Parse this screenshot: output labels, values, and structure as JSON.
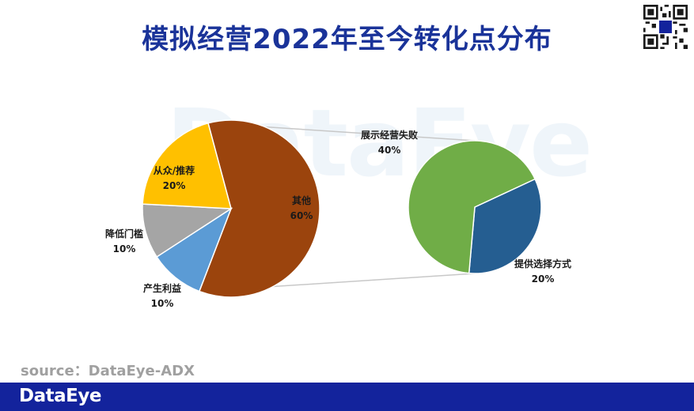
{
  "title": "模拟经营2022年至今转化点分布",
  "watermark": "DataEye",
  "source": "source：DataEye-ADX",
  "footer": {
    "brand": "DataEye"
  },
  "colors": {
    "title": "#1a3399",
    "footer_bg": "#13239c",
    "source": "#a0a0a0",
    "watermark": "#eef4fa",
    "connector": "#c8c8c8"
  },
  "chart_data": [
    {
      "type": "pie",
      "slices": [
        {
          "label": "其他",
          "value": 60,
          "value_label": "60%",
          "color": "#9b440d"
        },
        {
          "label": "产生利益",
          "value": 10,
          "value_label": "10%",
          "color": "#5b9bd5"
        },
        {
          "label": "降低门槛",
          "value": 10,
          "value_label": "10%",
          "color": "#a5a5a5"
        },
        {
          "label": "从众/推荐",
          "value": 20,
          "value_label": "20%",
          "color": "#ffc000"
        }
      ],
      "expanded_slice": "其他"
    },
    {
      "type": "pie",
      "slices": [
        {
          "label": "提供选择方式",
          "value": 20,
          "value_label": "20%",
          "color": "#255e91"
        },
        {
          "label": "展示经营失败",
          "value": 40,
          "value_label": "40%",
          "color": "#70ad47"
        }
      ]
    }
  ]
}
